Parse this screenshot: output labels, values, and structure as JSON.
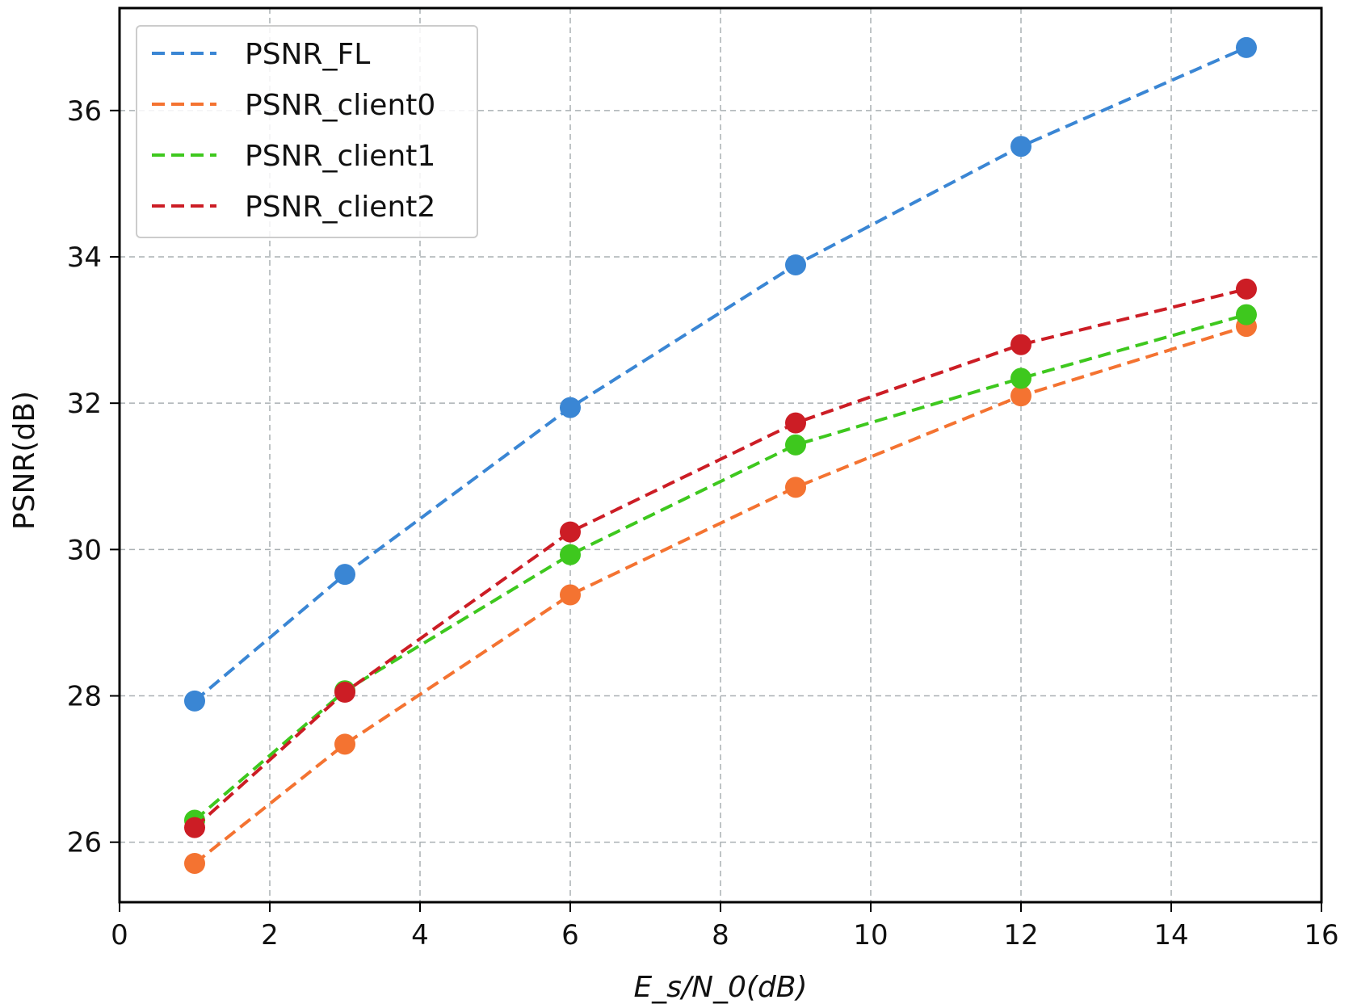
{
  "chart_data": {
    "type": "line",
    "title": "",
    "xlabel": "E_s/N_0(dB)",
    "ylabel": "PSNR(dB)",
    "xlim": [
      0,
      16
    ],
    "ylim": [
      25.18,
      37.4
    ],
    "xticks": [
      0,
      2,
      4,
      6,
      8,
      10,
      12,
      14,
      16
    ],
    "yticks": [
      26,
      28,
      30,
      32,
      34,
      36
    ],
    "grid": true,
    "legend_position": "top-left",
    "x": [
      1,
      3,
      6,
      9,
      12,
      15
    ],
    "series": [
      {
        "name": "PSNR_FL",
        "color": "#3a86d4",
        "values": [
          27.93,
          29.66,
          31.94,
          33.89,
          35.51,
          36.86
        ]
      },
      {
        "name": "PSNR_client0",
        "color": "#f47331",
        "values": [
          25.71,
          27.34,
          29.38,
          30.85,
          32.1,
          33.05
        ]
      },
      {
        "name": "PSNR_client1",
        "color": "#3ec81e",
        "values": [
          26.3,
          28.07,
          29.93,
          31.43,
          32.34,
          33.21
        ]
      },
      {
        "name": "PSNR_client2",
        "color": "#cc1d25",
        "values": [
          26.2,
          28.05,
          30.24,
          31.73,
          32.8,
          33.56
        ]
      }
    ]
  }
}
